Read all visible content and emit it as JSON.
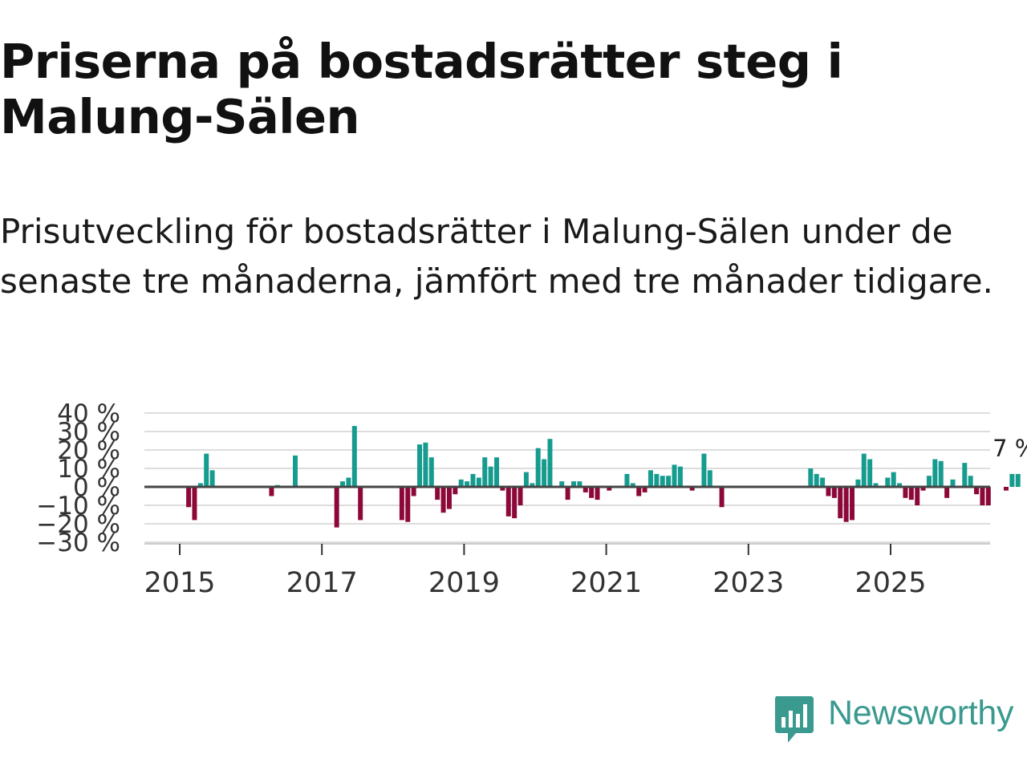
{
  "title": "Priserna på bostadsrätter steg i Malung-Sälen",
  "subtitle": "Prisutveckling för bostadsrätter i Malung-Sälen under de senaste tre månaderna, jämfört med tre månader tidigare.",
  "logo": {
    "text": "Newsworthy",
    "icon": "newsworthy-chart-bubble-icon"
  },
  "colors": {
    "positive": "#169b8f",
    "negative": "#8c0838",
    "zero_line": "#444444",
    "grid": "#dddddd",
    "brand": "#3a9a8f"
  },
  "chart_data": {
    "type": "bar",
    "title": "Priserna på bostadsrätter steg i Malung-Sälen",
    "xlabel": "",
    "ylabel": "",
    "unit": "%",
    "ylim": [
      -30,
      40
    ],
    "yticks": [
      40,
      30,
      20,
      10,
      0,
      -10,
      -20,
      -30
    ],
    "ytick_labels": [
      "40 %",
      "30 %",
      "20 %",
      "10 %",
      "0 %",
      "−10 %",
      "−20 %",
      "−30 %"
    ],
    "xticks": [
      2015,
      2017,
      2019,
      2021,
      2023,
      2025
    ],
    "xtick_labels": [
      "2015",
      "2017",
      "2019",
      "2021",
      "2023",
      "2025"
    ],
    "last_value_label": "7 %",
    "start": "2015-01",
    "values": [
      0,
      -11,
      -18,
      2,
      18,
      9,
      0,
      0,
      0,
      0,
      0,
      0,
      0,
      0,
      0,
      -5,
      1,
      0,
      0,
      17,
      0,
      0,
      0,
      0,
      0,
      0,
      -22,
      3,
      5,
      33,
      -18,
      0,
      0,
      0,
      0,
      0,
      0,
      -18,
      -19,
      -5,
      23,
      24,
      16,
      -7,
      -14,
      -12,
      -4,
      4,
      3,
      7,
      5,
      16,
      11,
      16,
      -2,
      -16,
      -17,
      -10,
      8,
      2,
      21,
      15,
      26,
      0,
      3,
      -7,
      3,
      3,
      -3,
      -6,
      -7,
      0,
      -2,
      0,
      0,
      7,
      2,
      -5,
      -3,
      9,
      7,
      6,
      6,
      12,
      11,
      0,
      -2,
      0,
      18,
      9,
      0,
      -11,
      0,
      0,
      0,
      0,
      0,
      0,
      0,
      0,
      0,
      0,
      0,
      0,
      0,
      0,
      10,
      7,
      5,
      -5,
      -6,
      -17,
      -19,
      -18,
      4,
      18,
      15,
      2,
      0,
      5,
      8,
      2,
      -6,
      -7,
      -10,
      -2,
      6,
      15,
      14,
      -6,
      4,
      0,
      13,
      6,
      -4,
      -10,
      -10,
      0,
      0,
      -2,
      7,
      7
    ]
  }
}
